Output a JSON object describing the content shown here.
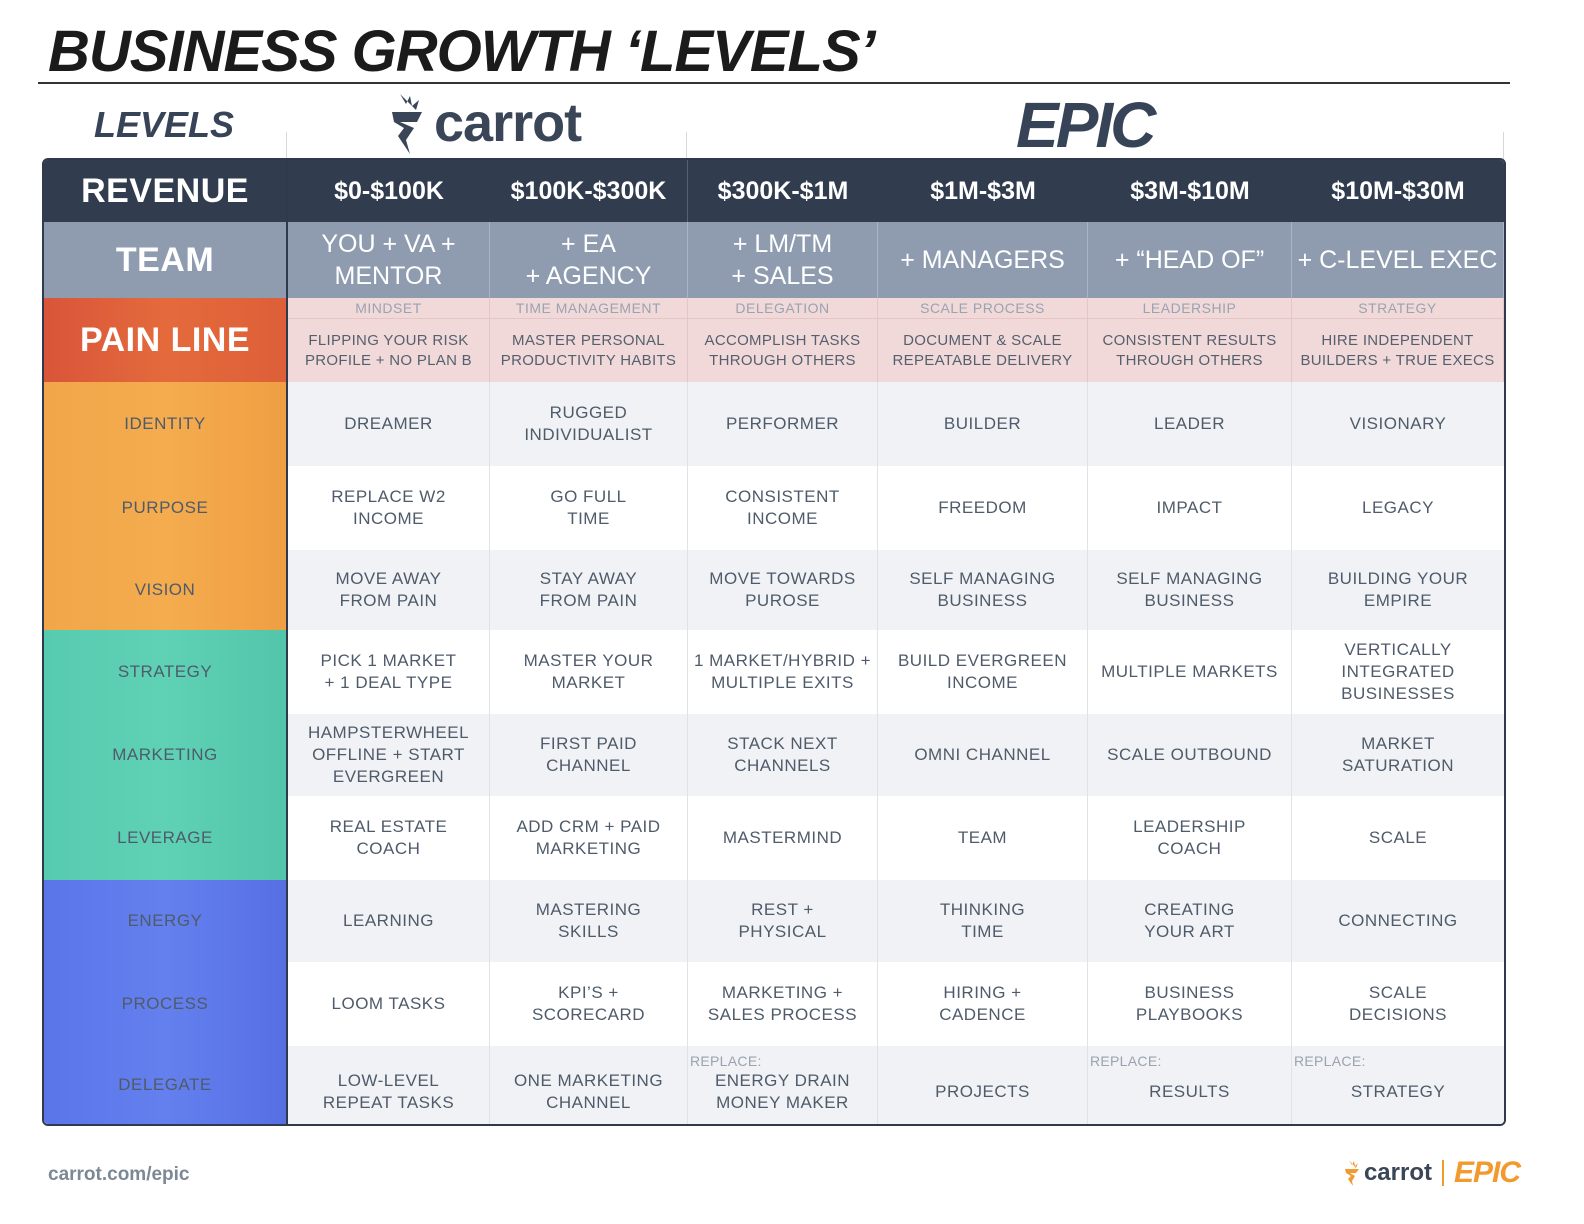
{
  "title": "BUSINESS GROWTH ‘LEVELS’",
  "levels_label": "LEVELS",
  "brand_carrot": "carrot",
  "brand_epic": "EPIC",
  "colors": {
    "dark": "#313d4f",
    "team": "#8f9cb0",
    "pain": "#f1d9da",
    "red": "#d9553a",
    "orange": "#f1a64a",
    "teal": "#57cbb0",
    "blue": "#5a75e9",
    "footer_accent": "#f29a2e"
  },
  "revenue": {
    "label": "REVENUE",
    "values": [
      "$0-$100K",
      "$100K-$300K",
      "$300K-$1M",
      "$1M-$3M",
      "$3M-$10M",
      "$10M-$30M"
    ]
  },
  "team": {
    "label": "TEAM",
    "values": [
      "YOU + VA +\nMENTOR",
      "+ EA\n+ AGENCY",
      "+ LM/TM\n+ SALES",
      "+ MANAGERS",
      "+ “HEAD OF”",
      "+ C-LEVEL EXEC"
    ]
  },
  "pain_line": {
    "label": "PAIN LINE",
    "subs": [
      "MINDSET",
      "TIME MANAGEMENT",
      "DELEGATION",
      "SCALE PROCESS",
      "LEADERSHIP",
      "STRATEGY"
    ],
    "values": [
      "FLIPPING YOUR RISK\nPROFILE + NO PLAN B",
      "MASTER PERSONAL\nPRODUCTIVITY HABITS",
      "ACCOMPLISH TASKS\nTHROUGH OTHERS",
      "DOCUMENT & SCALE\nREPEATABLE DELIVERY",
      "CONSISTENT RESULTS\nTHROUGH OTHERS",
      "HIRE INDEPENDENT\nBUILDERS + TRUE EXECS"
    ]
  },
  "identity": {
    "label": "IDENTITY",
    "values": [
      "DREAMER",
      "RUGGED\nINDIVIDUALIST",
      "PERFORMER",
      "BUILDER",
      "LEADER",
      "VISIONARY"
    ]
  },
  "purpose": {
    "label": "PURPOSE",
    "values": [
      "REPLACE W2\nINCOME",
      "GO FULL\nTIME",
      "CONSISTENT\nINCOME",
      "FREEDOM",
      "IMPACT",
      "LEGACY"
    ]
  },
  "vision": {
    "label": "VISION",
    "values": [
      "MOVE AWAY\nFROM PAIN",
      "STAY AWAY\nFROM PAIN",
      "MOVE TOWARDS\nPUROSE",
      "SELF MANAGING\nBUSINESS",
      "SELF MANAGING\nBUSINESS",
      "BUILDING YOUR\nEMPIRE"
    ]
  },
  "strategy": {
    "label": "STRATEGY",
    "values": [
      "PICK 1 MARKET\n+ 1 DEAL TYPE",
      "MASTER YOUR\nMARKET",
      "1 MARKET/HYBRID +\nMULTIPLE EXITS",
      "BUILD EVERGREEN\nINCOME",
      "MULTIPLE MARKETS",
      "VERTICALLY\nINTEGRATED\nBUSINESSES"
    ]
  },
  "marketing": {
    "label": "MARKETING",
    "values": [
      "HAMPSTERWHEEL\nOFFLINE + START\nEVERGREEN",
      "FIRST PAID\nCHANNEL",
      "STACK NEXT\nCHANNELS",
      "OMNI CHANNEL",
      "SCALE OUTBOUND",
      "MARKET\nSATURATION"
    ]
  },
  "leverage": {
    "label": "LEVERAGE",
    "values": [
      "REAL ESTATE\nCOACH",
      "ADD CRM + PAID\nMARKETING",
      "MASTERMIND",
      "TEAM",
      "LEADERSHIP\nCOACH",
      "SCALE"
    ]
  },
  "energy": {
    "label": "ENERGY",
    "values": [
      "LEARNING",
      "MASTERING\nSKILLS",
      "REST +\nPHYSICAL",
      "THINKING\nTIME",
      "CREATING\nYOUR ART",
      "CONNECTING"
    ]
  },
  "process": {
    "label": "PROCESS",
    "values": [
      "LOOM TASKS",
      "KPI’S +\nSCORECARD",
      "MARKETING +\nSALES PROCESS",
      "HIRING +\nCADENCE",
      "BUSINESS\nPLAYBOOKS",
      "SCALE\nDECISIONS"
    ]
  },
  "delegate": {
    "label": "DELEGATE",
    "replace_label": "REPLACE:",
    "values": [
      "LOW-LEVEL\nREPEAT TASKS",
      "ONE MARKETING\nCHANNEL",
      "ENERGY DRAIN\nMONEY MAKER",
      "PROJECTS",
      "RESULTS",
      "STRATEGY"
    ]
  },
  "footer": {
    "url": "carrot.com/epic",
    "brand_carrot": "carrot",
    "brand_epic": "EPIC"
  }
}
